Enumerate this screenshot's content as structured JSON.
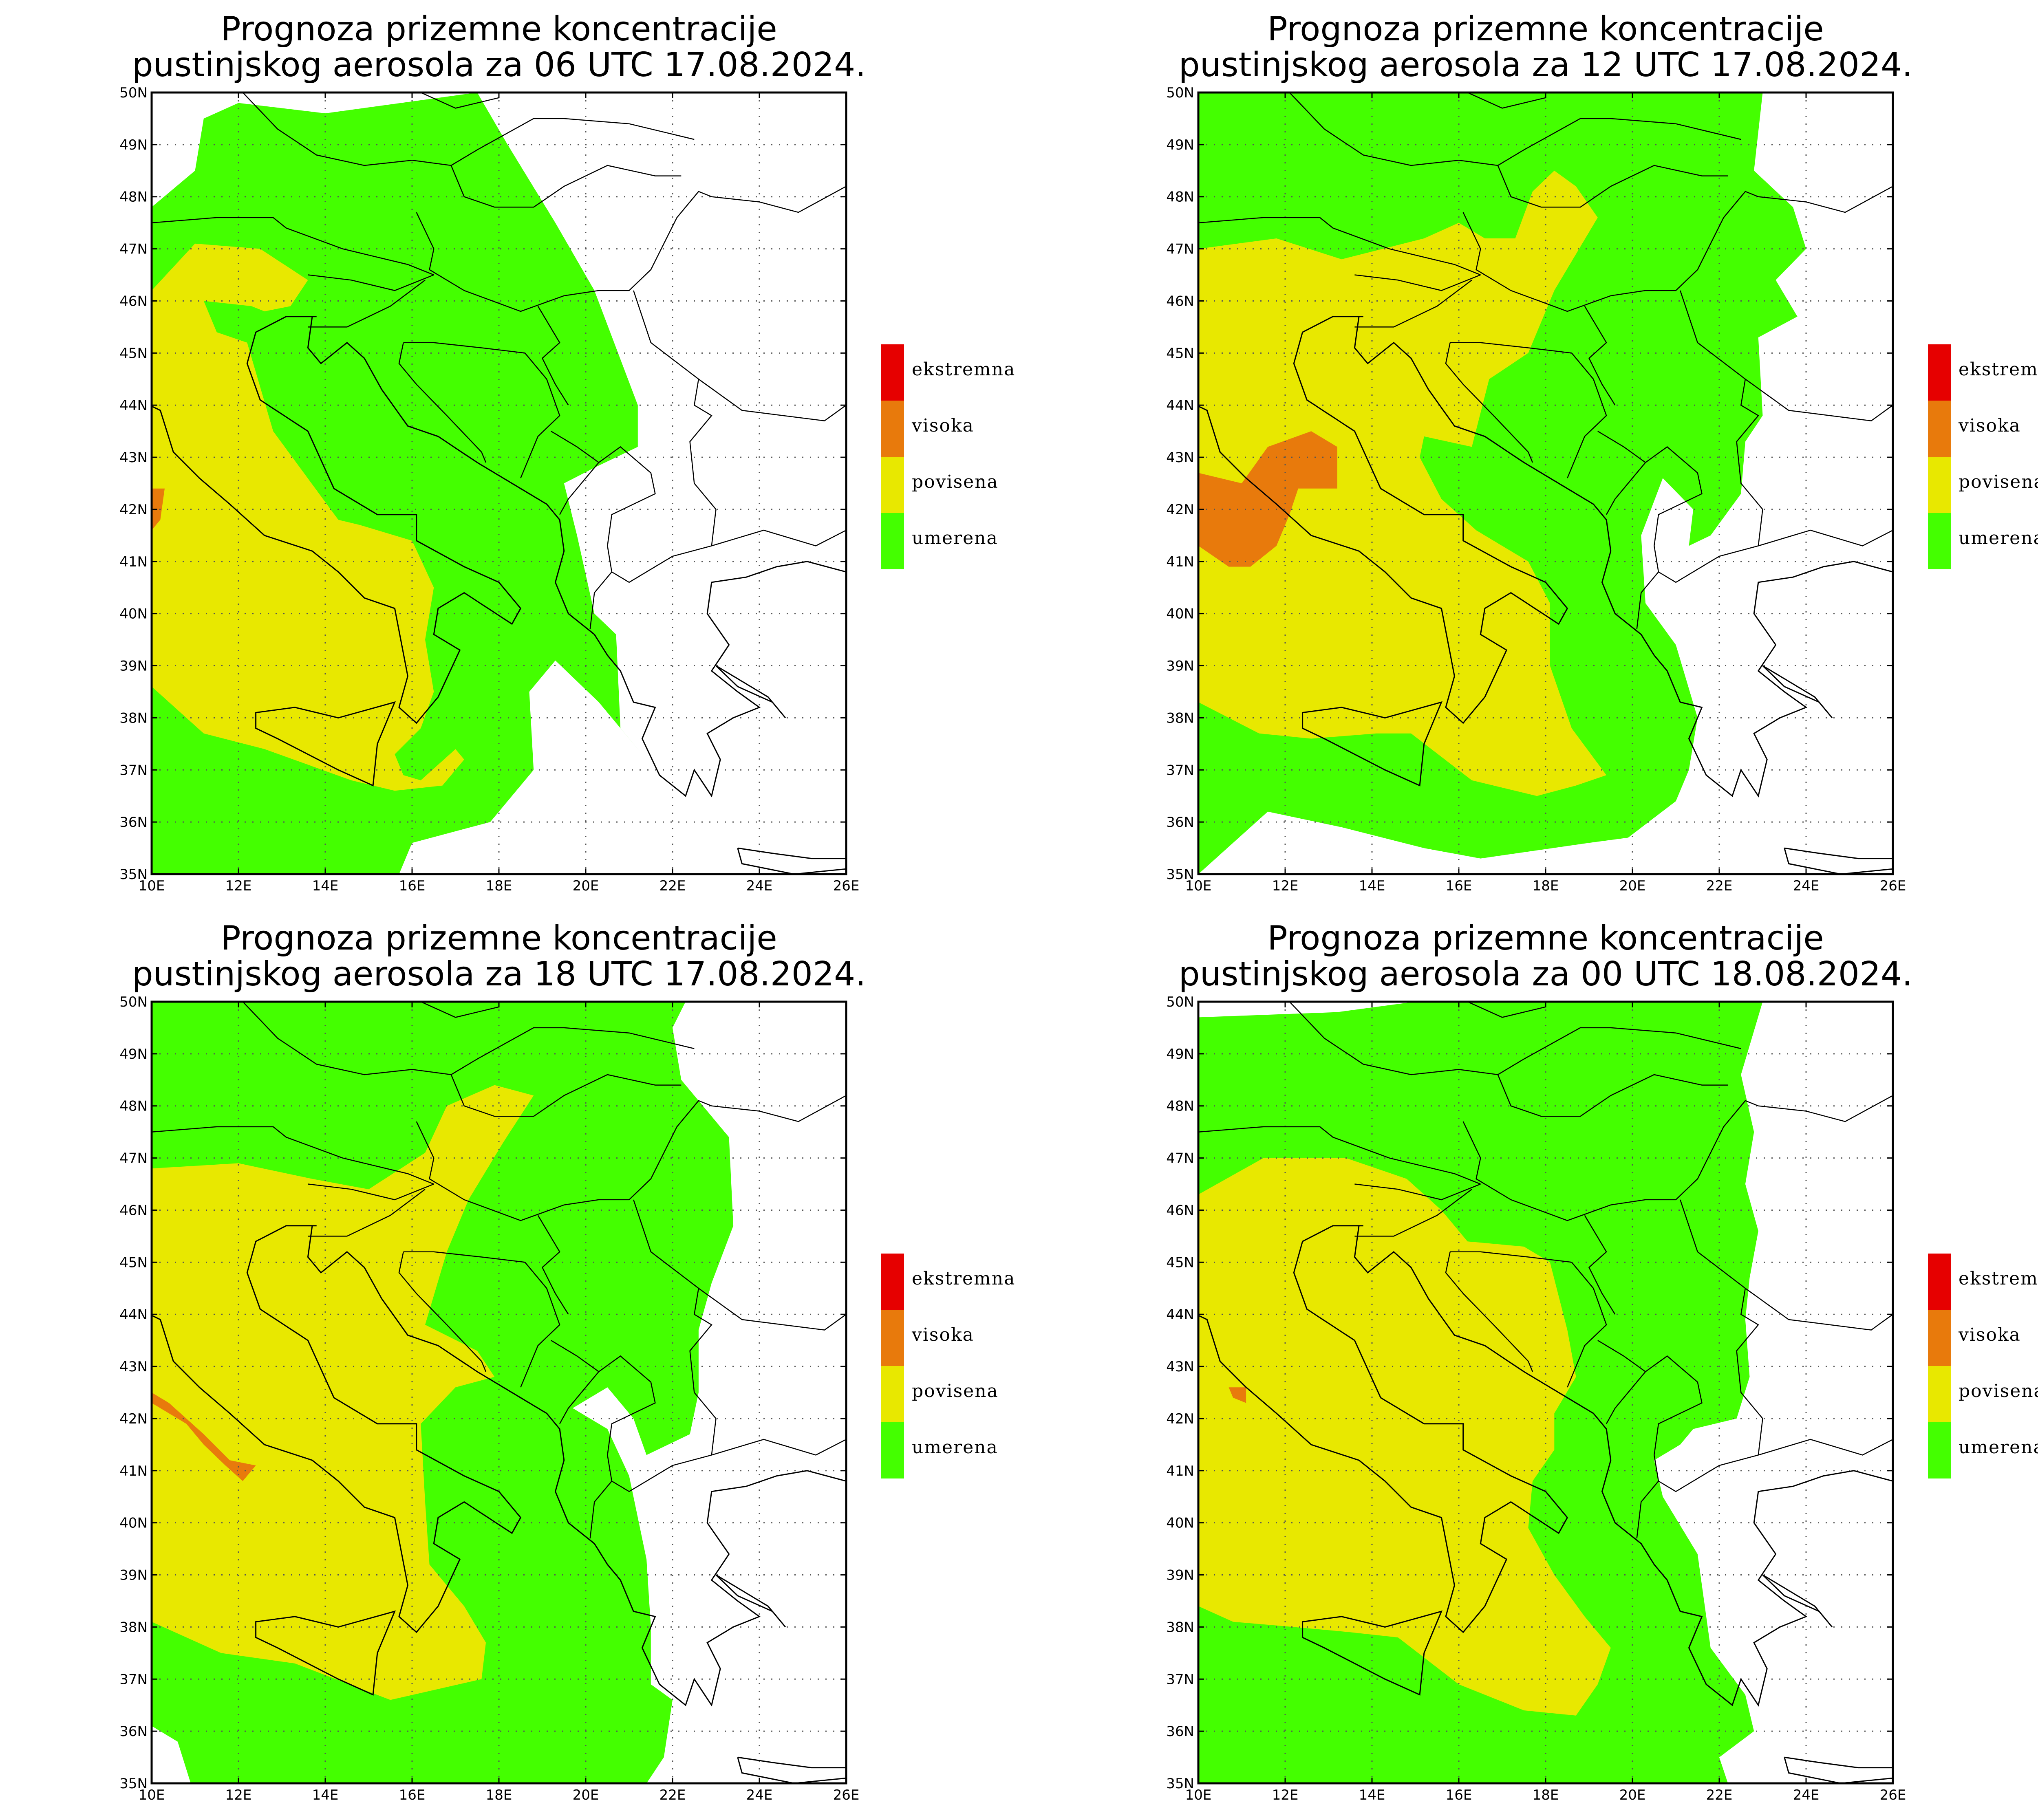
{
  "colors": {
    "ekstremna": "#e60000",
    "visoka": "#e87a0c",
    "povisena": "#e8e800",
    "umerena": "#44ff00",
    "background": "#ffffff"
  },
  "axes": {
    "x_ticks": [
      "10E",
      "12E",
      "14E",
      "16E",
      "18E",
      "20E",
      "22E",
      "24E",
      "26E"
    ],
    "y_ticks": [
      "35N",
      "36N",
      "37N",
      "38N",
      "39N",
      "40N",
      "41N",
      "42N",
      "43N",
      "44N",
      "45N",
      "46N",
      "47N",
      "48N",
      "49N",
      "50N"
    ],
    "lon_range": [
      10,
      26
    ],
    "lat_range": [
      35,
      50
    ]
  },
  "legend": [
    {
      "key": "ekstremna",
      "label": "ekstremna"
    },
    {
      "key": "visoka",
      "label": "visoka"
    },
    {
      "key": "povisena",
      "label": "povisena"
    },
    {
      "key": "umerena",
      "label": "umerena"
    }
  ],
  "panels": [
    {
      "title_line1": "Prognoza prizemne koncentracije",
      "title_line2": "pustinjskog aerosola za 06 UTC 17.08.2024.",
      "zones": {
        "umerena": [
          [
            10,
            47.8
          ],
          [
            11,
            48.5
          ],
          [
            11.2,
            49.5
          ],
          [
            12,
            49.8
          ],
          [
            14,
            49.6
          ],
          [
            17.5,
            50
          ],
          [
            18.2,
            49
          ],
          [
            19.3,
            47.5
          ],
          [
            20.2,
            46.2
          ],
          [
            21.2,
            44
          ],
          [
            21.2,
            43.2
          ],
          [
            20.2,
            42.8
          ],
          [
            19.5,
            42.5
          ],
          [
            19.8,
            41.5
          ],
          [
            20.2,
            40
          ],
          [
            20.7,
            39.6
          ],
          [
            20.8,
            37.8
          ],
          [
            21.3,
            37.3
          ],
          [
            20.3,
            38.3
          ],
          [
            19.3,
            39.1
          ],
          [
            18.7,
            38.5
          ],
          [
            18.8,
            37
          ],
          [
            17.8,
            36
          ],
          [
            16,
            35.6
          ],
          [
            15.7,
            35
          ],
          [
            10,
            35
          ],
          [
            10,
            47.8
          ]
        ],
        "povisena": [
          [
            10,
            46.2
          ],
          [
            11,
            47.1
          ],
          [
            12.5,
            47
          ],
          [
            13.6,
            46.4
          ],
          [
            13.2,
            45.9
          ],
          [
            12.6,
            45.8
          ],
          [
            12.3,
            45.9
          ],
          [
            11.2,
            46
          ],
          [
            11.5,
            45.4
          ],
          [
            12.2,
            45.2
          ],
          [
            12.8,
            43.5
          ],
          [
            14.3,
            41.8
          ],
          [
            14.8,
            41.7
          ],
          [
            16,
            41.4
          ],
          [
            16.5,
            40.5
          ],
          [
            16.3,
            39.5
          ],
          [
            16.5,
            38.5
          ],
          [
            16.2,
            37.8
          ],
          [
            15.6,
            37.3
          ],
          [
            15.8,
            36.9
          ],
          [
            16.2,
            36.8
          ],
          [
            17,
            37.4
          ],
          [
            17.2,
            37.2
          ],
          [
            16.7,
            36.7
          ],
          [
            15.6,
            36.6
          ],
          [
            14.6,
            36.8
          ],
          [
            12.6,
            37.4
          ],
          [
            11.2,
            37.7
          ],
          [
            10,
            38.6
          ],
          [
            10,
            46.2
          ]
        ],
        "visoka": [
          [
            10,
            42.4
          ],
          [
            10.3,
            42.4
          ],
          [
            10.2,
            41.8
          ],
          [
            10,
            41.6
          ],
          [
            10,
            42.4
          ]
        ],
        "ekstremna": []
      }
    },
    {
      "title_line1": "Prognoza prizemne koncentracije",
      "title_line2": "pustinjskog aerosola za 12 UTC 17.08.2024.",
      "zones": {
        "umerena": [
          [
            10,
            50
          ],
          [
            23,
            50
          ],
          [
            22.8,
            48.5
          ],
          [
            23.7,
            47.8
          ],
          [
            24,
            47
          ],
          [
            23.3,
            46.4
          ],
          [
            23.8,
            45.7
          ],
          [
            22.9,
            45.3
          ],
          [
            23,
            43.8
          ],
          [
            22.6,
            43.3
          ],
          [
            22.5,
            42.3
          ],
          [
            21.8,
            41.5
          ],
          [
            21.3,
            41.3
          ],
          [
            21.4,
            42
          ],
          [
            20.7,
            42.6
          ],
          [
            20.2,
            41.5
          ],
          [
            20.3,
            40.2
          ],
          [
            21,
            39.4
          ],
          [
            21.5,
            38
          ],
          [
            21.3,
            37
          ],
          [
            21,
            36.4
          ],
          [
            19.9,
            35.7
          ],
          [
            19,
            35.6
          ],
          [
            16.5,
            35.3
          ],
          [
            15.2,
            35.5
          ],
          [
            13.3,
            35.9
          ],
          [
            11.6,
            36.2
          ],
          [
            10.8,
            35.6
          ],
          [
            10,
            35
          ],
          [
            10,
            50
          ]
        ],
        "povisena": [
          [
            10,
            47
          ],
          [
            11.8,
            47.2
          ],
          [
            13.3,
            46.8
          ],
          [
            15.2,
            47.2
          ],
          [
            16,
            47.5
          ],
          [
            16.6,
            47.2
          ],
          [
            17.3,
            47.2
          ],
          [
            17.7,
            48.1
          ],
          [
            18.2,
            48.5
          ],
          [
            18.7,
            48.2
          ],
          [
            19.2,
            47.6
          ],
          [
            18.2,
            46.2
          ],
          [
            17.6,
            45
          ],
          [
            16.7,
            44.5
          ],
          [
            16.3,
            43.2
          ],
          [
            15.2,
            43.4
          ],
          [
            15.1,
            43
          ],
          [
            15.6,
            42.2
          ],
          [
            16.4,
            41.6
          ],
          [
            16.8,
            41.4
          ],
          [
            17.6,
            41
          ],
          [
            18.1,
            40.2
          ],
          [
            18.1,
            39
          ],
          [
            18.6,
            37.8
          ],
          [
            19.4,
            36.9
          ],
          [
            18.7,
            36.7
          ],
          [
            17.8,
            36.5
          ],
          [
            16.3,
            36.8
          ],
          [
            14.9,
            37.7
          ],
          [
            14.1,
            37.7
          ],
          [
            12.6,
            37.6
          ],
          [
            11.4,
            37.7
          ],
          [
            10,
            38.3
          ],
          [
            10,
            47
          ]
        ],
        "visoka": [
          [
            10,
            42.7
          ],
          [
            11,
            42.5
          ],
          [
            11.6,
            43.2
          ],
          [
            12.6,
            43.5
          ],
          [
            13.2,
            43.2
          ],
          [
            13.2,
            42.4
          ],
          [
            12.3,
            42.4
          ],
          [
            12.1,
            41.9
          ],
          [
            11.8,
            41.3
          ],
          [
            11.2,
            40.9
          ],
          [
            10.7,
            40.9
          ],
          [
            10,
            41.3
          ],
          [
            10,
            42.7
          ]
        ],
        "ekstremna": []
      }
    },
    {
      "title_line1": "Prognoza prizemne koncentracije",
      "title_line2": "pustinjskog aerosola za 18 UTC 17.08.2024.",
      "zones": {
        "umerena": [
          [
            10,
            50
          ],
          [
            22.3,
            50
          ],
          [
            22,
            49.5
          ],
          [
            22.2,
            48.5
          ],
          [
            23.3,
            47.4
          ],
          [
            23.4,
            45.7
          ],
          [
            22.9,
            44.6
          ],
          [
            22.6,
            43.7
          ],
          [
            22.6,
            42.5
          ],
          [
            22.4,
            41.7
          ],
          [
            21.4,
            41.3
          ],
          [
            21.1,
            42
          ],
          [
            20.5,
            42.6
          ],
          [
            19.7,
            42.2
          ],
          [
            20.5,
            41.8
          ],
          [
            21,
            40.9
          ],
          [
            21.4,
            39.3
          ],
          [
            21.5,
            38
          ],
          [
            21.5,
            36.9
          ],
          [
            22,
            36.6
          ],
          [
            21.8,
            35.5
          ],
          [
            21.4,
            35
          ],
          [
            10.9,
            35
          ],
          [
            10.6,
            35.8
          ],
          [
            10,
            36.1
          ],
          [
            10,
            50
          ]
        ],
        "povisena": [
          [
            10,
            46.8
          ],
          [
            12,
            46.9
          ],
          [
            13.7,
            46.6
          ],
          [
            15,
            46.4
          ],
          [
            16.3,
            47.1
          ],
          [
            16.8,
            48
          ],
          [
            17.9,
            48.4
          ],
          [
            18.8,
            48.2
          ],
          [
            18.1,
            47.3
          ],
          [
            17.3,
            46.2
          ],
          [
            16.8,
            45.2
          ],
          [
            16.3,
            43.8
          ],
          [
            17.5,
            43.3
          ],
          [
            17.9,
            42.8
          ],
          [
            17,
            42.6
          ],
          [
            16.2,
            41.9
          ],
          [
            16.3,
            40.4
          ],
          [
            16.4,
            39.2
          ],
          [
            17.2,
            38.4
          ],
          [
            17.7,
            37.7
          ],
          [
            17.6,
            37
          ],
          [
            15.5,
            36.6
          ],
          [
            13.3,
            37.3
          ],
          [
            11.6,
            37.5
          ],
          [
            10,
            38.1
          ],
          [
            10,
            46.8
          ]
        ],
        "visoka": [
          [
            10,
            42.5
          ],
          [
            10.4,
            42.3
          ],
          [
            11.2,
            41.7
          ],
          [
            11.8,
            41.2
          ],
          [
            12.4,
            41.1
          ],
          [
            12.1,
            40.8
          ],
          [
            11.7,
            41.1
          ],
          [
            11.2,
            41.5
          ],
          [
            10.8,
            41.9
          ],
          [
            10.2,
            42.2
          ],
          [
            10,
            42.3
          ],
          [
            10,
            42.5
          ]
        ],
        "ekstremna": []
      }
    },
    {
      "title_line1": "Prognoza prizemne koncentracije",
      "title_line2": "pustinjskog aerosola za 00 UTC 18.08.2024.",
      "zones": {
        "umerena": [
          [
            10,
            49.7
          ],
          [
            13.2,
            49.8
          ],
          [
            15,
            50
          ],
          [
            23,
            50
          ],
          [
            22.5,
            48.6
          ],
          [
            22.8,
            47.5
          ],
          [
            22.6,
            46.5
          ],
          [
            22.9,
            45.6
          ],
          [
            22.7,
            44.7
          ],
          [
            22.6,
            43.9
          ],
          [
            22.7,
            42.8
          ],
          [
            22.4,
            42
          ],
          [
            21.4,
            41.8
          ],
          [
            21.1,
            41.5
          ],
          [
            20.5,
            41.2
          ],
          [
            20.7,
            40.5
          ],
          [
            21.5,
            39.4
          ],
          [
            21.8,
            37.6
          ],
          [
            22.6,
            36.7
          ],
          [
            22.8,
            36
          ],
          [
            22,
            35.5
          ],
          [
            22.2,
            35
          ],
          [
            10,
            35
          ],
          [
            10,
            49.7
          ]
        ],
        "povisena": [
          [
            10,
            46.3
          ],
          [
            11.5,
            47
          ],
          [
            13.4,
            47
          ],
          [
            14.8,
            46.6
          ],
          [
            15.6,
            46
          ],
          [
            16.2,
            45.4
          ],
          [
            17.5,
            45.3
          ],
          [
            18.1,
            45
          ],
          [
            18.5,
            43.7
          ],
          [
            18.7,
            42.8
          ],
          [
            18.2,
            42.1
          ],
          [
            18.2,
            41.4
          ],
          [
            17.7,
            40.8
          ],
          [
            17.6,
            39.9
          ],
          [
            18.2,
            39
          ],
          [
            18.9,
            38.2
          ],
          [
            19.5,
            37.6
          ],
          [
            19.2,
            36.9
          ],
          [
            18.7,
            36.3
          ],
          [
            17.5,
            36.4
          ],
          [
            16,
            36.9
          ],
          [
            14.6,
            37.8
          ],
          [
            13.5,
            37.9
          ],
          [
            12.2,
            38
          ],
          [
            10.8,
            38.1
          ],
          [
            10,
            38.4
          ],
          [
            10,
            46.3
          ]
        ],
        "visoka": [
          [
            10.7,
            42.6
          ],
          [
            11.1,
            42.6
          ],
          [
            11.1,
            42.3
          ],
          [
            10.8,
            42.4
          ],
          [
            10.7,
            42.6
          ]
        ],
        "ekstremna": []
      }
    }
  ]
}
